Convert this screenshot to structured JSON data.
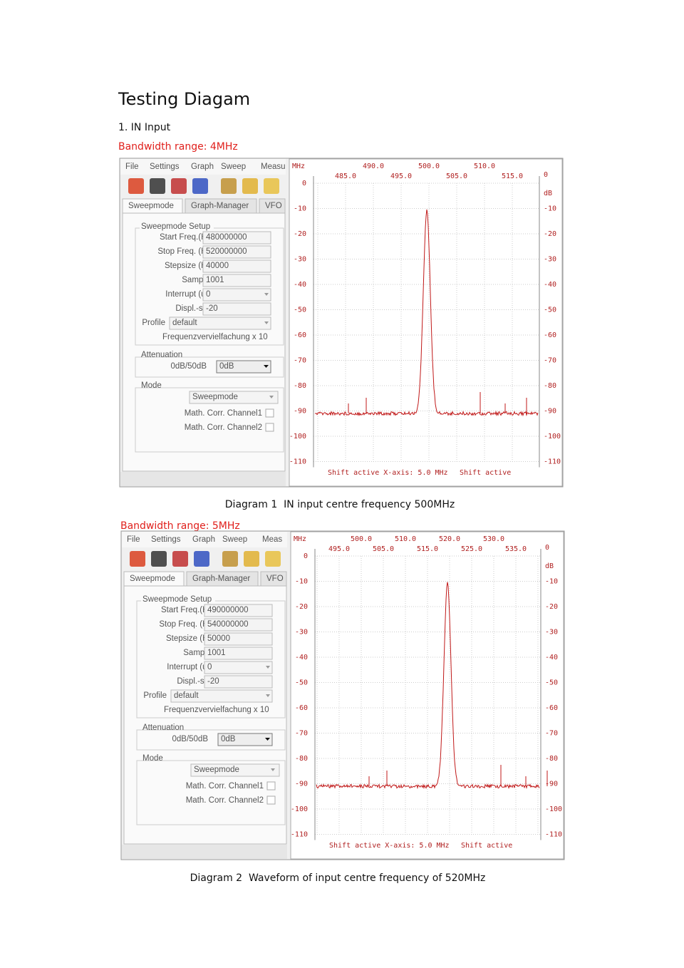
{
  "header": {
    "title": "Testing Diagam",
    "section": "1. IN Input"
  },
  "figures": [
    {
      "bandwidth": "Bandwidth range: 4MHz",
      "menu": [
        "File",
        "Settings",
        "Graph",
        "Sweep",
        "Measu"
      ],
      "tabs": [
        "Sweepmode",
        "Graph-Manager",
        "VFO"
      ],
      "setup_title": "Sweepmode Setup",
      "fields": [
        {
          "label": "Start Freq.(Hz)",
          "value": "480000000"
        },
        {
          "label": "Stop Freq. (Hz)",
          "value": "520000000"
        },
        {
          "label": "Stepsize (Hz)",
          "value": "40000"
        },
        {
          "label": "Samples",
          "value": "1001"
        },
        {
          "label": "Interrupt (uS)",
          "value": "0"
        },
        {
          "label": "Displ.-shift",
          "value": "-20"
        },
        {
          "label": "Profile",
          "value": "default"
        }
      ],
      "note": "Frequenzvervielfachung x 10",
      "attenuation": {
        "title": "Attenuation",
        "label": "0dB/50dB",
        "value": "0dB"
      },
      "mode": {
        "title": "Mode",
        "value": "Sweepmode",
        "options": [
          "Math. Corr. Channel1",
          "Math. Corr. Channel2"
        ]
      },
      "graph": {
        "unit_x": "MHz",
        "unit_y": "dB",
        "top_row1": [
          "490.0",
          "500.0",
          "510.0"
        ],
        "top_row2": [
          "485.0",
          "495.0",
          "505.0",
          "515.0"
        ],
        "y_labels": [
          "0",
          "-10",
          "-20",
          "-30",
          "-40",
          "-50",
          "-60",
          "-70",
          "-80",
          "-90",
          "-100",
          "-110"
        ],
        "footer": [
          "Shift active X-axis: 5.0 MHz",
          "Shift active"
        ]
      },
      "caption": "Diagram 1  IN input centre frequency 500MHz"
    },
    {
      "bandwidth": "Bandwidth range: 5MHz",
      "menu": [
        "File",
        "Settings",
        "Graph",
        "Sweep",
        "Meas"
      ],
      "tabs": [
        "Sweepmode",
        "Graph-Manager",
        "VFO"
      ],
      "setup_title": "Sweepmode Setup",
      "fields": [
        {
          "label": "Start Freq.(Hz)",
          "value": "490000000"
        },
        {
          "label": "Stop Freq. (Hz)",
          "value": "540000000"
        },
        {
          "label": "Stepsize (Hz)",
          "value": "50000"
        },
        {
          "label": "Samples",
          "value": "1001"
        },
        {
          "label": "Interrupt (uS)",
          "value": "0"
        },
        {
          "label": "Displ.-shift",
          "value": "-20"
        },
        {
          "label": "Profile",
          "value": "default"
        }
      ],
      "note": "Frequenzvervielfachung x 10",
      "attenuation": {
        "title": "Attenuation",
        "label": "0dB/50dB",
        "value": "0dB"
      },
      "mode": {
        "title": "Mode",
        "value": "Sweepmode",
        "options": [
          "Math. Corr. Channel1",
          "Math. Corr. Channel2"
        ]
      },
      "graph": {
        "unit_x": "MHz",
        "unit_y": "dB",
        "top_row1": [
          "500.0",
          "510.0",
          "520.0",
          "530.0"
        ],
        "top_row2": [
          "495.0",
          "505.0",
          "515.0",
          "525.0",
          "535.0"
        ],
        "y_labels": [
          "0",
          "-10",
          "-20",
          "-30",
          "-40",
          "-50",
          "-60",
          "-70",
          "-80",
          "-90",
          "-100",
          "-110"
        ],
        "footer": [
          "Shift active X-axis: 5.0 MHz",
          "Shift active"
        ]
      },
      "caption": "Diagram 2  Waveform of input centre frequency of 520MHz"
    }
  ]
}
